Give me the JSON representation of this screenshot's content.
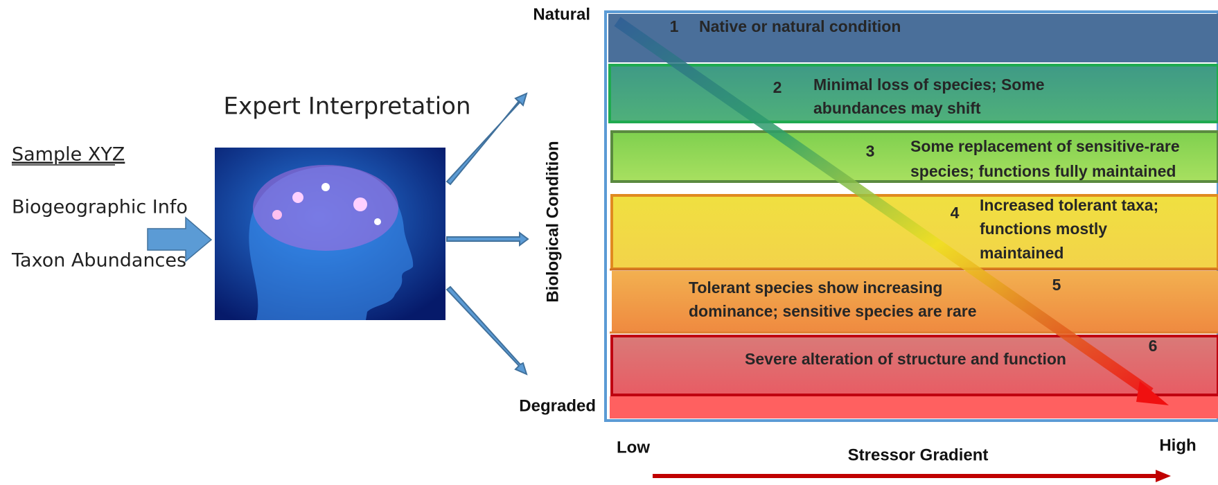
{
  "inputs": {
    "sample": "Sample XYZ",
    "items": [
      "Biogeographic  Info",
      "Taxon Abundances"
    ]
  },
  "expert": {
    "title": "Expert Interpretation"
  },
  "axis": {
    "top": "Natural",
    "bottom": "Degraded",
    "y_title": "Biological Condition",
    "x_low": "Low",
    "x_high": "High",
    "x_title": "Stressor Gradient"
  },
  "levels": [
    {
      "number": "1",
      "lines": [
        "Native or natural condition"
      ]
    },
    {
      "number": "2",
      "lines": [
        "Minimal loss of species; Some",
        "abundances may shift"
      ]
    },
    {
      "number": "3",
      "lines": [
        "Some replacement of sensitive-rare",
        "species; functions fully maintained"
      ]
    },
    {
      "number": "4",
      "lines": [
        "Increased tolerant taxa;",
        "functions mostly",
        "maintained"
      ]
    },
    {
      "number": "5",
      "lines": [
        "Tolerant species show increasing",
        "dominance; sensitive species are rare"
      ]
    },
    {
      "number": "6",
      "lines": [
        "Severe alteration of structure and function"
      ]
    }
  ]
}
